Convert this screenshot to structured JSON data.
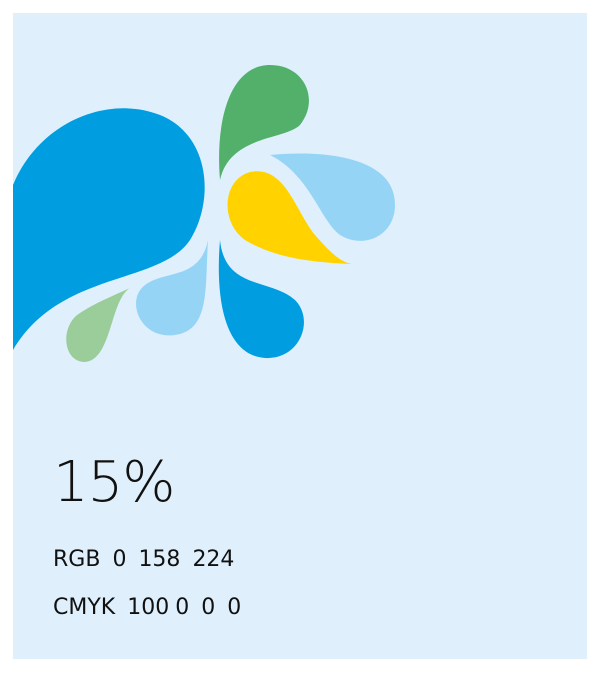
{
  "swatch": {
    "tint": "15%",
    "rgb": {
      "label": "RGB",
      "values": [
        "0",
        "158",
        "224"
      ]
    },
    "cmyk": {
      "label": "CMYK",
      "values": [
        "100",
        "0",
        "0",
        "0"
      ]
    }
  }
}
